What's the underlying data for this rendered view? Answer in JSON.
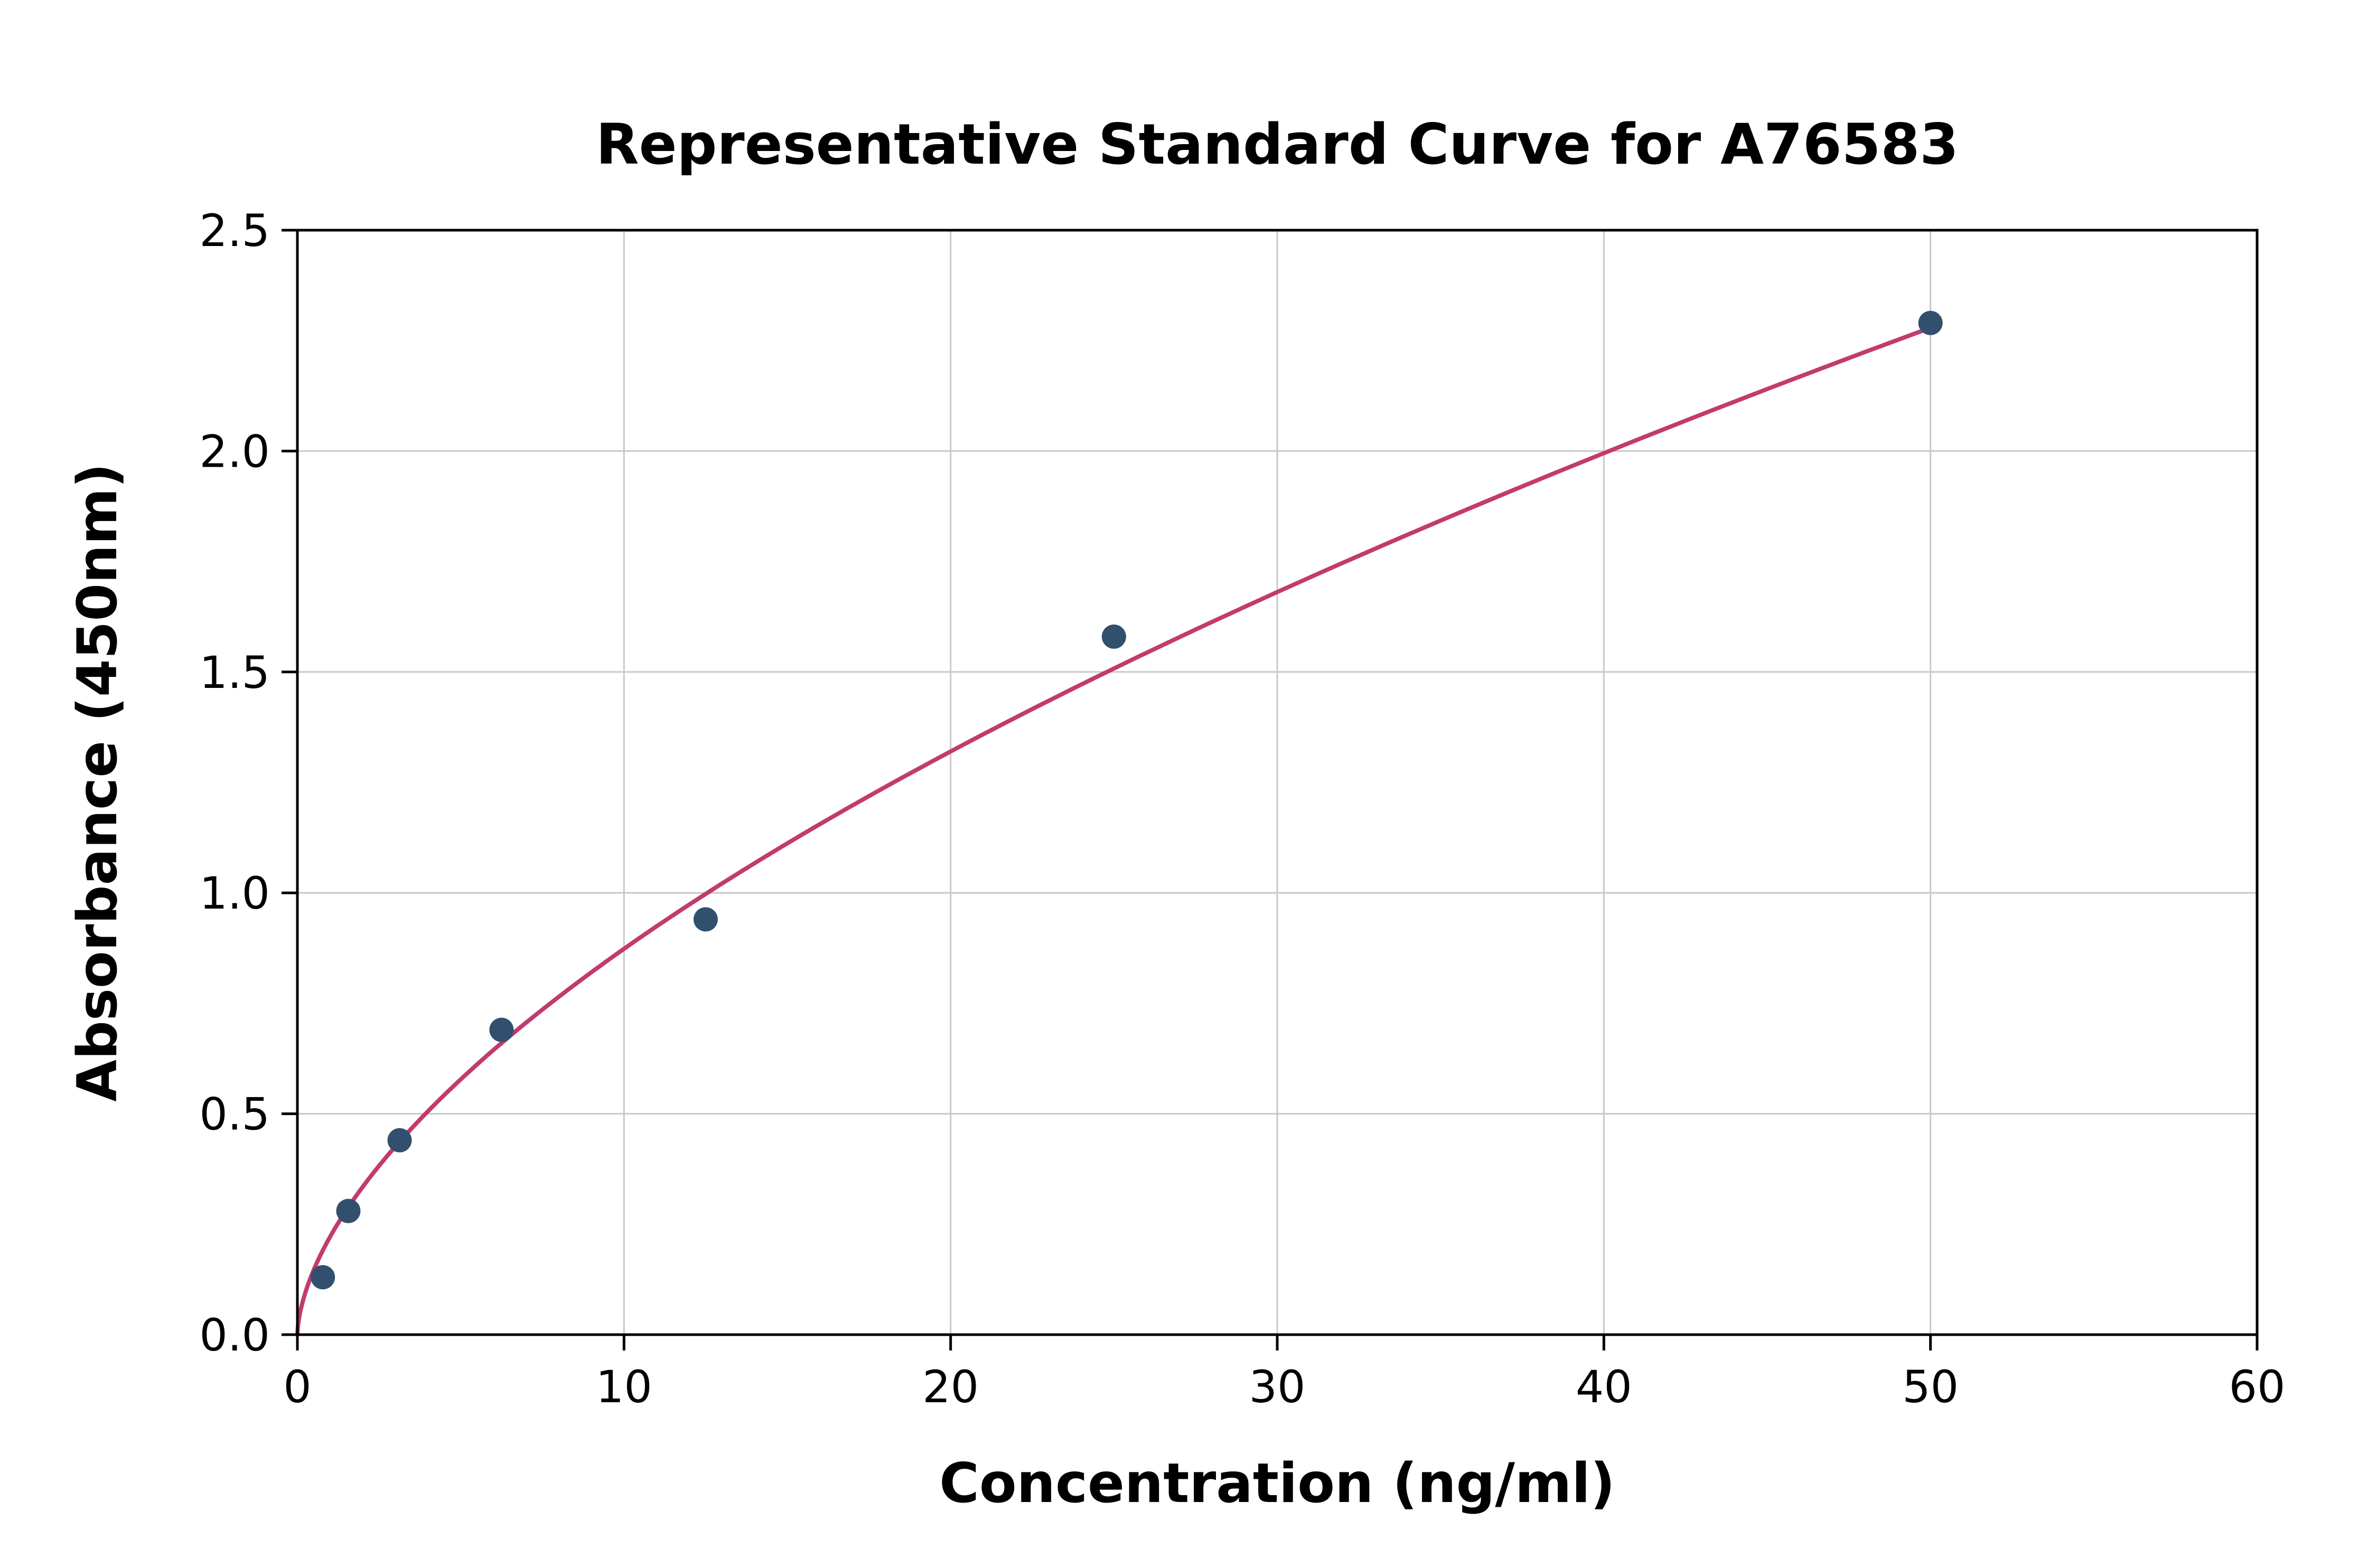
{
  "chart_data": {
    "type": "scatter",
    "title": "Representative Standard Curve for A76583",
    "xlabel": "Concentration (ng/ml)",
    "ylabel": "Absorbance (450nm)",
    "xlim": [
      0,
      60
    ],
    "ylim": [
      0,
      2.5
    ],
    "grid": true,
    "legend": "none",
    "x_ticks": [
      {
        "v": 0,
        "label": "0"
      },
      {
        "v": 10,
        "label": "10"
      },
      {
        "v": 20,
        "label": "20"
      },
      {
        "v": 30,
        "label": "30"
      },
      {
        "v": 40,
        "label": "40"
      },
      {
        "v": 50,
        "label": "50"
      },
      {
        "v": 60,
        "label": "60"
      }
    ],
    "y_ticks": [
      {
        "v": 0.0,
        "label": "0.0"
      },
      {
        "v": 0.5,
        "label": "0.5"
      },
      {
        "v": 1.0,
        "label": "1.0"
      },
      {
        "v": 1.5,
        "label": "1.5"
      },
      {
        "v": 2.0,
        "label": "2.0"
      },
      {
        "v": 2.5,
        "label": "2.5"
      }
    ],
    "points": [
      {
        "x": 0.78,
        "y": 0.13
      },
      {
        "x": 1.56,
        "y": 0.28
      },
      {
        "x": 3.13,
        "y": 0.44
      },
      {
        "x": 6.25,
        "y": 0.69
      },
      {
        "x": 12.5,
        "y": 0.94
      },
      {
        "x": 25,
        "y": 1.58
      },
      {
        "x": 50,
        "y": 2.29
      }
    ],
    "fit": {
      "type": "power",
      "a": 0.2214,
      "b": 0.596,
      "x_start": 0,
      "x_end": 50
    },
    "colors": {
      "point": "#31506e",
      "curve": "#c23b6e",
      "grid": "#c9c9c9",
      "frame": "#000000"
    }
  }
}
